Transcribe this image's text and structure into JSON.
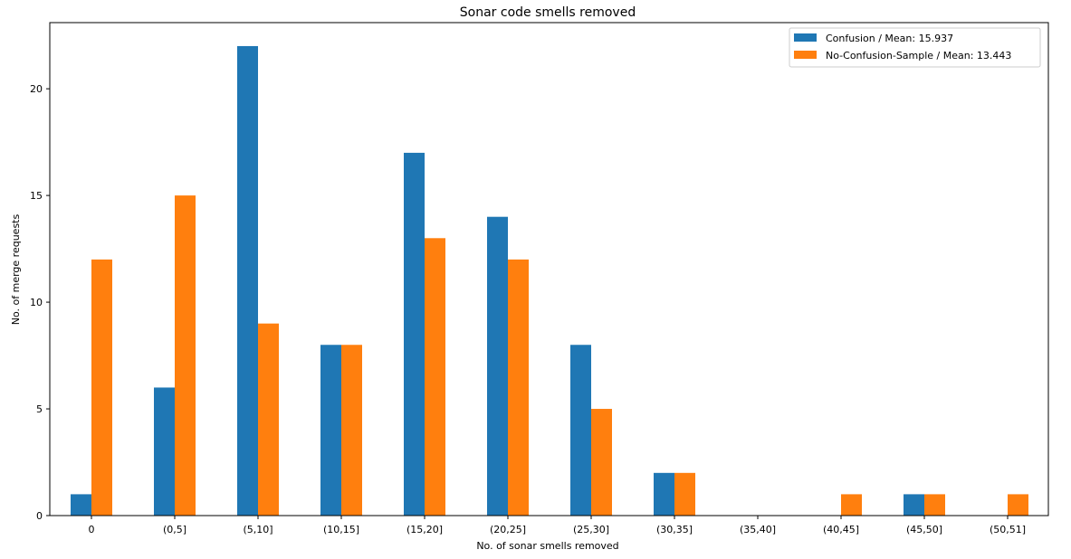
{
  "chart_data": {
    "type": "bar",
    "title": "Sonar code smells removed",
    "xlabel": "No. of sonar smells removed",
    "ylabel": "No. of merge requests",
    "categories": [
      "0",
      "(0,5]",
      "(5,10]",
      "(10,15]",
      "(15,20]",
      "(20,25]",
      "(25,30]",
      "(30,35]",
      "(35,40]",
      "(40,45]",
      "(45,50]",
      "(50,51]"
    ],
    "series": [
      {
        "name": "Confusion / Mean: 15.937",
        "color": "#1f77b4",
        "values": [
          1,
          6,
          22,
          8,
          17,
          14,
          8,
          2,
          0,
          0,
          1,
          0
        ]
      },
      {
        "name": "No-Confusion-Sample / Mean: 13.443",
        "color": "#ff7f0e",
        "values": [
          12,
          15,
          9,
          8,
          13,
          12,
          5,
          2,
          0,
          1,
          1,
          1
        ]
      }
    ],
    "ylim": [
      0,
      23.1
    ],
    "yticks": [
      0,
      5,
      10,
      15,
      20
    ],
    "grid": false,
    "legend_position": "top-right"
  }
}
